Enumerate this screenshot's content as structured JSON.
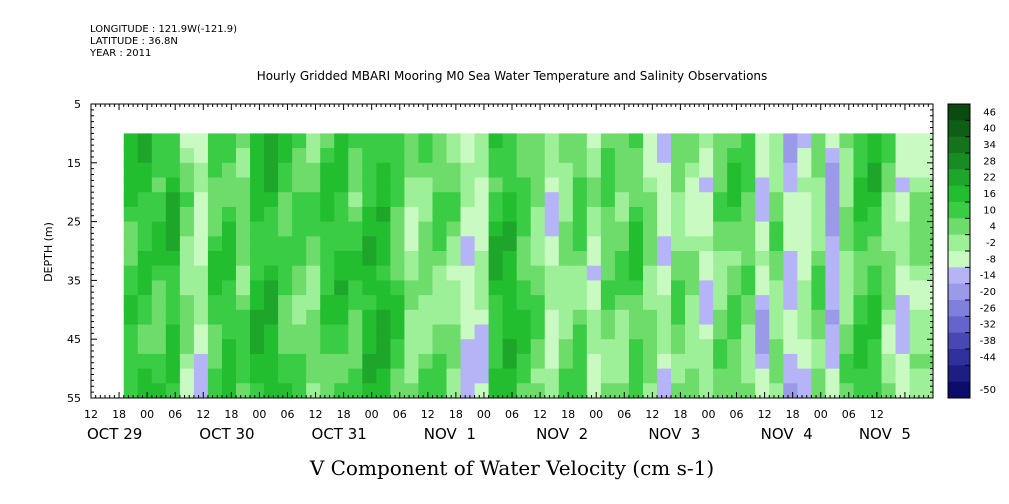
{
  "header": {
    "longitude": "LONGITUDE : 121.9W(-121.9)",
    "latitude": "LATITUDE : 36.8N",
    "year": "YEAR : 2011",
    "title": "Hourly Gridded MBARI Mooring M0 Sea Water Temperature and Salinity Observations"
  },
  "chart_data": {
    "type": "heatmap",
    "title": "Hourly Gridded MBARI Mooring M0 Sea Water Temperature and Salinity Observations",
    "variable_label": "V Component of Water Velocity (cm s-1)",
    "ylabel": "DEPTH (m)",
    "y_reversed": true,
    "ylim": [
      5,
      55
    ],
    "y_ticks": [
      5,
      15,
      25,
      35,
      45,
      55
    ],
    "data_depth_range": [
      10,
      55
    ],
    "x_range_hours": [
      -12,
      168
    ],
    "data_start_hour": -5,
    "hour_tick_labels": [
      "12",
      "18",
      "00",
      "06",
      "12",
      "18",
      "00",
      "06",
      "12",
      "18",
      "00",
      "06",
      "12",
      "18",
      "00",
      "06",
      "12",
      "18",
      "00",
      "06",
      "12",
      "18",
      "00",
      "06",
      "12",
      "18",
      "00",
      "06",
      "12"
    ],
    "day_labels": [
      {
        "label": "OCT 29",
        "hour": -12
      },
      {
        "label": "OCT 30",
        "hour": 12
      },
      {
        "label": "OCT 31",
        "hour": 36
      },
      {
        "label": "NOV  1",
        "hour": 60
      },
      {
        "label": "NOV  2",
        "hour": 84
      },
      {
        "label": "NOV  3",
        "hour": 108
      },
      {
        "label": "NOV  4",
        "hour": 132
      },
      {
        "label": "NOV  5",
        "hour": 153
      }
    ],
    "colorbar_levels": [
      46,
      40,
      34,
      28,
      22,
      16,
      10,
      4,
      -2,
      -8,
      -14,
      -20,
      -26,
      -32,
      -38,
      -44,
      -50
    ],
    "colorbar_colors": [
      "#0b4a10",
      "#0f5e16",
      "#13741c",
      "#178c22",
      "#1ea62a",
      "#22be30",
      "#3acc44",
      "#6ddc6a",
      "#9ef098",
      "#c8fac2",
      "#b4b4f6",
      "#9a9ae8",
      "#7f7fdc",
      "#6464cc",
      "#4848b4",
      "#30309a",
      "#1e1e82",
      "#0c0c6a"
    ],
    "vertical_bands": [
      {
        "hour": -5,
        "value": 14
      },
      {
        "hour": -2,
        "value": 16
      },
      {
        "hour": 1,
        "value": 12
      },
      {
        "hour": 4,
        "value": 18
      },
      {
        "hour": 7,
        "value": 4
      },
      {
        "hour": 10,
        "value": -4
      },
      {
        "hour": 13,
        "value": 12
      },
      {
        "hour": 16,
        "value": 15
      },
      {
        "hour": 19,
        "value": 8
      },
      {
        "hour": 22,
        "value": 18
      },
      {
        "hour": 25,
        "value": 20
      },
      {
        "hour": 28,
        "value": 12
      },
      {
        "hour": 31,
        "value": 10
      },
      {
        "hour": 34,
        "value": 6
      },
      {
        "hour": 37,
        "value": 14
      },
      {
        "hour": 40,
        "value": 16
      },
      {
        "hour": 43,
        "value": 10
      },
      {
        "hour": 46,
        "value": 18
      },
      {
        "hour": 49,
        "value": 20
      },
      {
        "hour": 52,
        "value": 12
      },
      {
        "hour": 55,
        "value": 2
      },
      {
        "hour": 58,
        "value": 6
      },
      {
        "hour": 61,
        "value": 8
      },
      {
        "hour": 64,
        "value": 4
      },
      {
        "hour": 67,
        "value": -6
      },
      {
        "hour": 70,
        "value": -4
      },
      {
        "hour": 73,
        "value": 16
      },
      {
        "hour": 76,
        "value": 18
      },
      {
        "hour": 79,
        "value": 12
      },
      {
        "hour": 82,
        "value": 6
      },
      {
        "hour": 85,
        "value": -4
      },
      {
        "hour": 88,
        "value": 4
      },
      {
        "hour": 91,
        "value": 10
      },
      {
        "hour": 94,
        "value": -2
      },
      {
        "hour": 97,
        "value": 8
      },
      {
        "hour": 100,
        "value": 6
      },
      {
        "hour": 103,
        "value": 12
      },
      {
        "hour": 106,
        "value": 4
      },
      {
        "hour": 109,
        "value": -6
      },
      {
        "hour": 112,
        "value": 6
      },
      {
        "hour": 115,
        "value": 2
      },
      {
        "hour": 118,
        "value": -4
      },
      {
        "hour": 121,
        "value": 6
      },
      {
        "hour": 124,
        "value": 10
      },
      {
        "hour": 127,
        "value": 8
      },
      {
        "hour": 130,
        "value": -8
      },
      {
        "hour": 133,
        "value": 4
      },
      {
        "hour": 136,
        "value": -10
      },
      {
        "hour": 139,
        "value": -4
      },
      {
        "hour": 142,
        "value": 6
      },
      {
        "hour": 145,
        "value": -12
      },
      {
        "hour": 148,
        "value": 4
      },
      {
        "hour": 151,
        "value": 14
      },
      {
        "hour": 154,
        "value": 16
      },
      {
        "hour": 157,
        "value": 4
      },
      {
        "hour": 160,
        "value": -6
      },
      {
        "hour": 163,
        "value": 2
      }
    ]
  }
}
